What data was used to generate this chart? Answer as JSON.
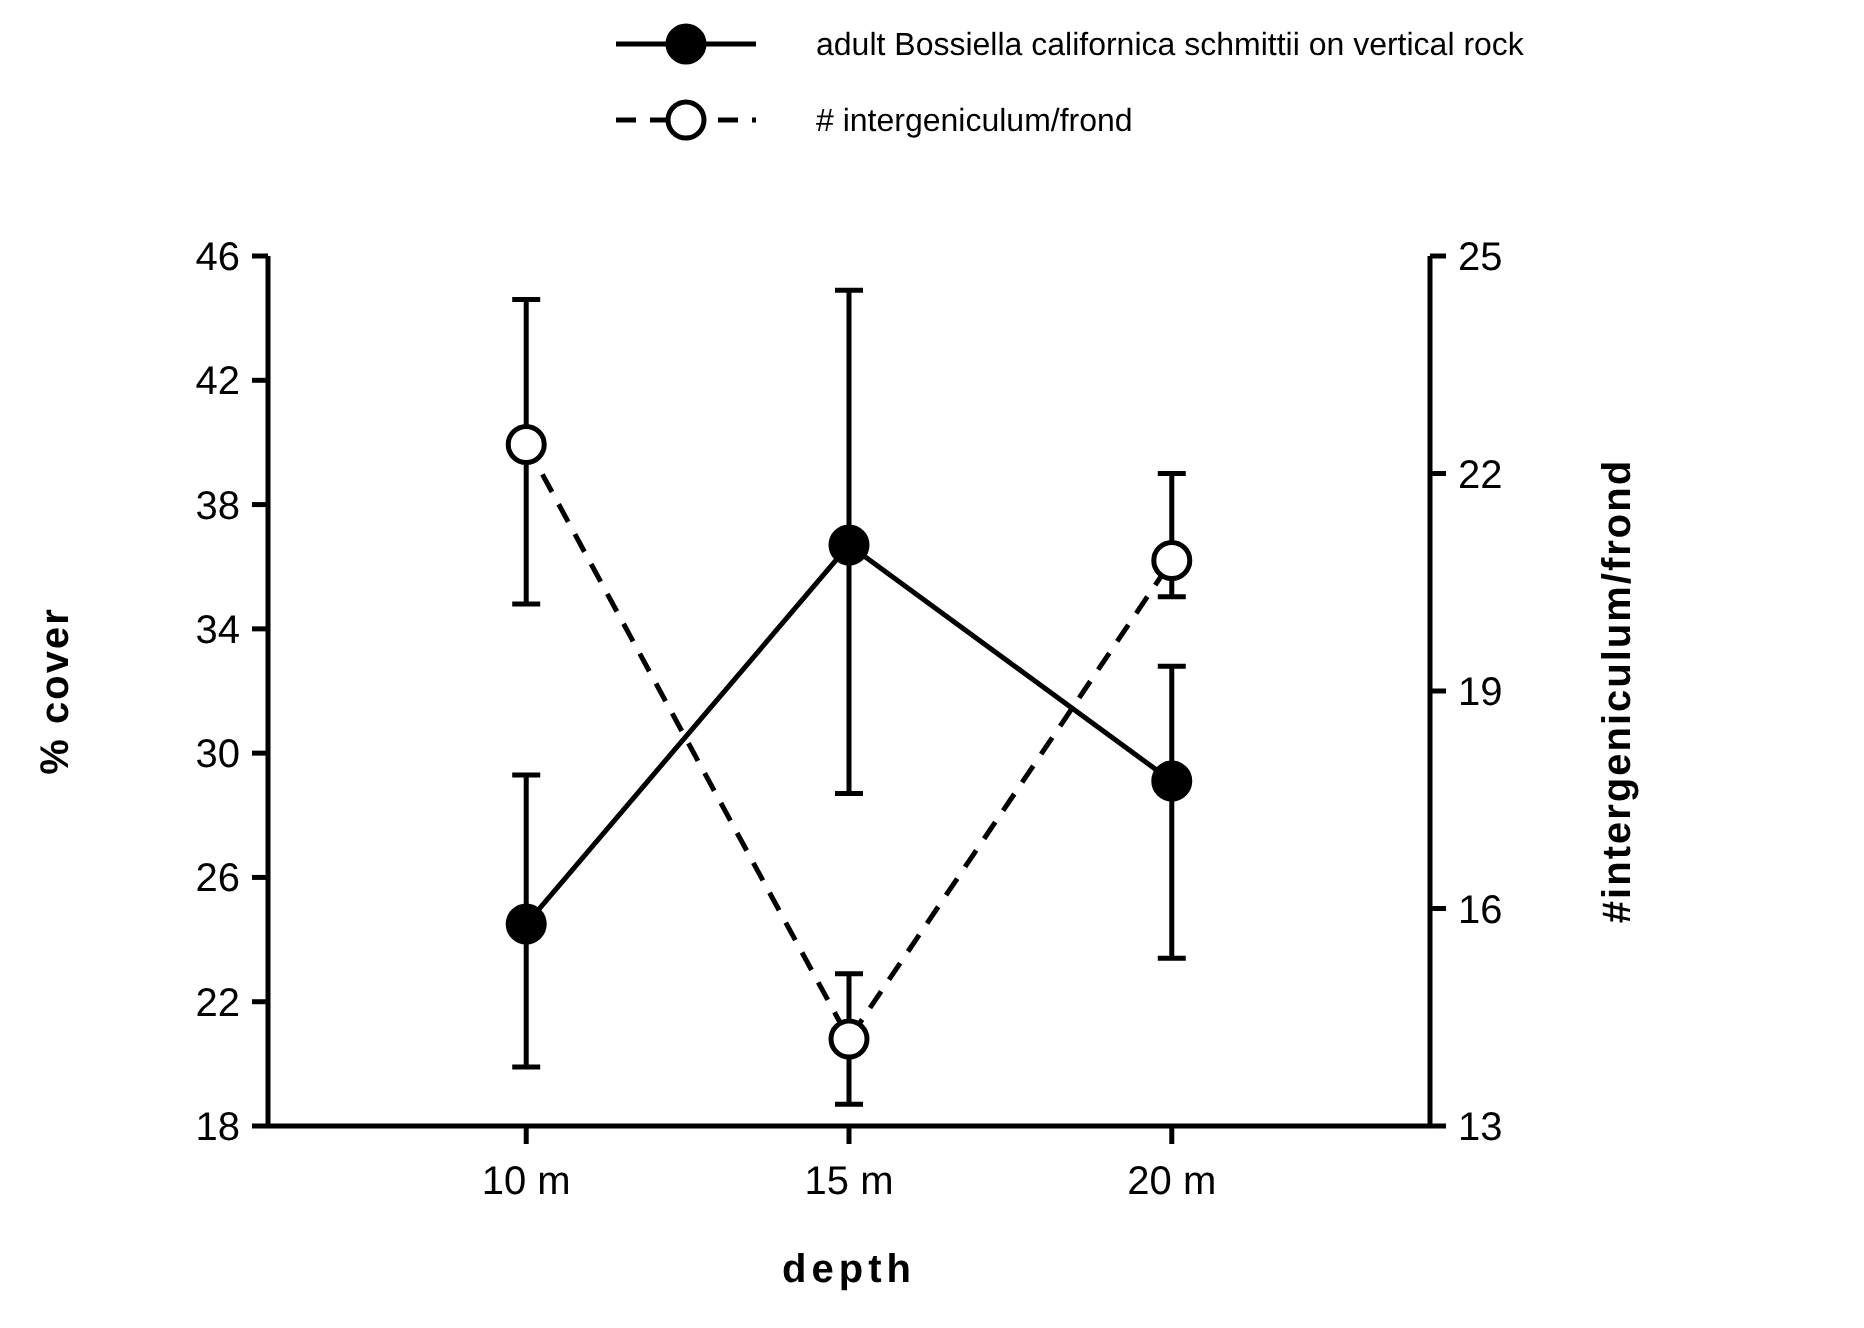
{
  "chart_data": {
    "type": "line",
    "xlabel": "depth",
    "ylabel": "% cover",
    "y2label": "#intergeniculum/frond",
    "categories": [
      "10 m",
      "15 m",
      "20 m"
    ],
    "series": [
      {
        "name": "adult Bossiella californica schmittii on vertical rock",
        "color": "#000000",
        "line_style": "solid",
        "values": [
          24.5,
          36.7,
          29.1
        ],
        "errors": [
          [
            19.9,
            29.3
          ],
          [
            28.7,
            44.9
          ],
          [
            23.4,
            32.8
          ]
        ]
      },
      {
        "name": "# intergeniculum/frond",
        "color": "#000000",
        "line_style": "dashed",
        "axis": "y2",
        "values": [
          22.4,
          14.2,
          20.8
        ],
        "errors": [
          [
            20.2,
            24.4
          ],
          [
            13.3,
            15.1
          ],
          [
            20.3,
            22.0
          ]
        ]
      }
    ],
    "ylim": [
      18,
      46
    ],
    "yticks": [
      18,
      22,
      26,
      30,
      34,
      38,
      42,
      46
    ],
    "y2lim": [
      13,
      25
    ],
    "y2ticks": [
      13,
      16,
      19,
      22,
      25
    ],
    "marker": "circle",
    "legend": "top",
    "grid": false
  }
}
